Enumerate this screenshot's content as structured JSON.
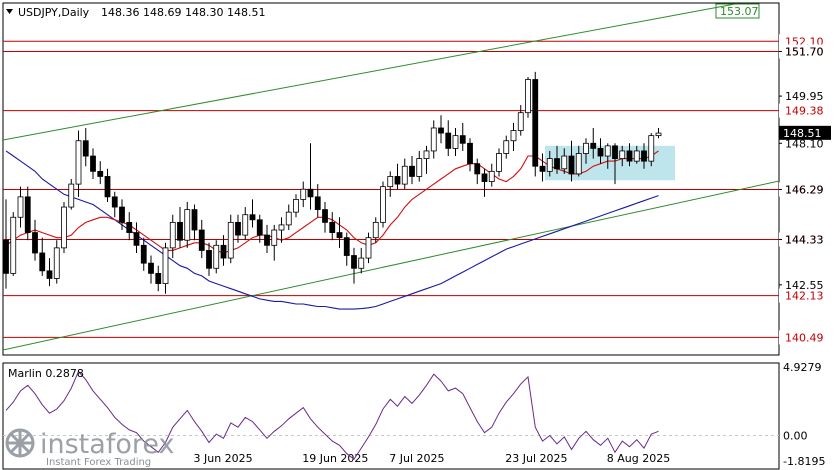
{
  "header": {
    "symbol": "USDJPY,Daily",
    "ohlc": "148.36 148.69 148.30 148.51"
  },
  "indicator": {
    "label": "Marlin 0.2878",
    "axis_ticks": [
      "4.9279",
      "0.00",
      "-1.8195"
    ]
  },
  "watermark": {
    "brand": "instaforex",
    "tagline": "Instant Forex Trading"
  },
  "colors": {
    "bull_candle": "#ffffff",
    "bear_candle": "#000000",
    "level_line": "#c00000",
    "channel_line": "#2e8b2e",
    "slow_ma": "#1a1aa0",
    "fast_ma": "#d01010",
    "oscillator": "#6a2a8a",
    "range_box": "#a8dbe6",
    "current_price_bg": "#000000",
    "current_price_text": "#ffffff"
  },
  "chart_data": {
    "type": "candlestick",
    "symbol": "USDJPY",
    "timeframe": "Daily",
    "ylim": [
      139.8,
      153.6
    ],
    "y_ticks": [
      "151.70",
      "149.95",
      "148.10",
      "146.29",
      "144.33",
      "142.55"
    ],
    "x_ticks": [
      "3 Jun 2025",
      "19 Jun 2025",
      "7 Jul 2025",
      "23 Jul 2025",
      "8 Aug 2025"
    ],
    "levels": [
      {
        "label": "152.10",
        "value": 152.1
      },
      {
        "label": "151.70",
        "value": 151.7
      },
      {
        "label": "149.38",
        "value": 149.38
      },
      {
        "label": "146.29",
        "value": 146.29
      },
      {
        "label": "144.33",
        "value": 144.33
      },
      {
        "label": "142.13",
        "value": 142.13
      },
      {
        "label": "140.49",
        "value": 140.49
      }
    ],
    "channel_top_label": "153.07",
    "current_price": "148.51",
    "candles": [
      [
        144.3,
        145.9,
        142.4,
        143.0
      ],
      [
        143.0,
        145.4,
        142.9,
        145.2
      ],
      [
        145.2,
        146.4,
        144.8,
        146.0
      ],
      [
        146.0,
        146.4,
        144.3,
        144.6
      ],
      [
        144.6,
        145.1,
        143.5,
        143.8
      ],
      [
        143.8,
        144.4,
        142.9,
        143.1
      ],
      [
        143.1,
        143.6,
        142.5,
        142.8
      ],
      [
        142.8,
        144.3,
        142.6,
        144.0
      ],
      [
        144.0,
        145.8,
        143.8,
        145.6
      ],
      [
        145.6,
        146.7,
        145.5,
        146.5
      ],
      [
        146.5,
        148.6,
        146.0,
        148.2
      ],
      [
        148.2,
        148.7,
        147.2,
        147.6
      ],
      [
        147.6,
        147.9,
        146.7,
        147.0
      ],
      [
        147.0,
        147.4,
        146.5,
        146.8
      ],
      [
        146.8,
        147.1,
        145.8,
        146.0
      ],
      [
        146.0,
        146.2,
        145.2,
        145.6
      ],
      [
        145.6,
        145.9,
        144.7,
        145.0
      ],
      [
        145.0,
        145.4,
        144.3,
        144.6
      ],
      [
        144.6,
        145.0,
        143.8,
        144.1
      ],
      [
        144.1,
        144.4,
        143.1,
        143.4
      ],
      [
        143.4,
        143.7,
        142.6,
        143.0
      ],
      [
        143.0,
        143.3,
        142.3,
        142.6
      ],
      [
        142.6,
        144.2,
        142.2,
        144.0
      ],
      [
        144.0,
        145.3,
        143.6,
        145.0
      ],
      [
        145.0,
        145.6,
        144.0,
        144.3
      ],
      [
        144.3,
        145.8,
        144.0,
        145.5
      ],
      [
        145.5,
        145.7,
        144.3,
        144.7
      ],
      [
        144.7,
        145.1,
        143.6,
        143.9
      ],
      [
        143.9,
        144.2,
        142.9,
        143.2
      ],
      [
        143.2,
        144.3,
        143.0,
        144.1
      ],
      [
        144.1,
        144.5,
        143.3,
        143.6
      ],
      [
        143.6,
        145.3,
        143.4,
        145.0
      ],
      [
        145.0,
        145.3,
        144.2,
        144.5
      ],
      [
        144.5,
        145.6,
        144.3,
        145.3
      ],
      [
        145.3,
        145.9,
        144.8,
        145.1
      ],
      [
        145.1,
        145.3,
        144.2,
        144.5
      ],
      [
        144.5,
        144.9,
        143.8,
        144.1
      ],
      [
        144.1,
        144.9,
        143.5,
        144.7
      ],
      [
        144.7,
        145.2,
        144.2,
        144.9
      ],
      [
        144.9,
        145.7,
        144.7,
        145.4
      ],
      [
        145.4,
        146.1,
        145.2,
        145.9
      ],
      [
        145.9,
        146.6,
        145.6,
        146.3
      ],
      [
        146.3,
        148.1,
        145.5,
        146.0
      ],
      [
        146.0,
        146.5,
        145.2,
        145.5
      ],
      [
        145.5,
        145.8,
        144.6,
        145.0
      ],
      [
        145.0,
        145.4,
        144.3,
        144.6
      ],
      [
        144.6,
        145.2,
        144.0,
        144.4
      ],
      [
        144.4,
        144.6,
        143.3,
        143.7
      ],
      [
        143.7,
        144.0,
        142.6,
        143.2
      ],
      [
        143.2,
        144.0,
        143.0,
        143.6
      ],
      [
        143.6,
        144.6,
        143.4,
        144.4
      ],
      [
        144.4,
        145.2,
        144.2,
        145.0
      ],
      [
        145.0,
        146.6,
        144.8,
        146.4
      ],
      [
        146.4,
        147.0,
        146.0,
        146.8
      ],
      [
        146.8,
        147.3,
        146.3,
        146.5
      ],
      [
        146.5,
        147.5,
        146.3,
        147.2
      ],
      [
        147.2,
        147.6,
        146.5,
        146.8
      ],
      [
        146.8,
        147.8,
        146.6,
        147.5
      ],
      [
        147.5,
        148.0,
        146.9,
        147.8
      ],
      [
        147.8,
        149.0,
        147.5,
        148.7
      ],
      [
        148.7,
        149.2,
        148.1,
        148.5
      ],
      [
        148.5,
        149.0,
        147.6,
        147.9
      ],
      [
        147.9,
        148.7,
        147.6,
        148.4
      ],
      [
        148.4,
        148.9,
        147.8,
        148.1
      ],
      [
        148.1,
        148.3,
        147.0,
        147.3
      ],
      [
        147.3,
        147.5,
        146.5,
        146.9
      ],
      [
        146.9,
        147.1,
        146.0,
        146.6
      ],
      [
        146.6,
        147.3,
        146.4,
        147.0
      ],
      [
        147.0,
        147.9,
        146.8,
        147.7
      ],
      [
        147.7,
        148.4,
        147.5,
        148.2
      ],
      [
        148.2,
        148.9,
        147.8,
        148.6
      ],
      [
        148.6,
        149.6,
        148.4,
        149.3
      ],
      [
        149.3,
        150.7,
        149.1,
        150.6
      ],
      [
        150.6,
        150.9,
        146.8,
        147.2
      ],
      [
        147.2,
        147.7,
        146.6,
        147.0
      ],
      [
        147.0,
        147.8,
        146.8,
        147.5
      ],
      [
        147.5,
        148.0,
        146.9,
        147.1
      ],
      [
        147.1,
        147.9,
        146.9,
        147.6
      ],
      [
        147.6,
        148.2,
        146.6,
        146.9
      ],
      [
        146.9,
        148.0,
        146.8,
        147.7
      ],
      [
        147.7,
        148.3,
        147.3,
        148.1
      ],
      [
        148.1,
        148.7,
        147.5,
        147.9
      ],
      [
        147.9,
        148.3,
        147.3,
        147.6
      ],
      [
        147.6,
        148.1,
        147.1,
        148.0
      ],
      [
        148.0,
        148.1,
        146.5,
        147.5
      ],
      [
        147.5,
        148.0,
        147.2,
        147.8
      ],
      [
        147.8,
        148.1,
        147.2,
        147.4
      ],
      [
        147.4,
        148.0,
        147.3,
        147.8
      ],
      [
        147.8,
        148.1,
        147.1,
        147.4
      ],
      [
        147.4,
        148.5,
        147.2,
        148.4
      ],
      [
        148.4,
        148.7,
        148.3,
        148.5
      ]
    ],
    "series": [
      {
        "values": [
          147.8,
          147.6,
          147.4,
          147.2,
          147.0,
          146.7,
          146.5,
          146.3,
          146.1,
          146.0,
          145.9,
          145.8,
          145.7,
          145.5,
          145.3,
          145.1,
          144.9,
          144.7,
          144.5,
          144.3,
          144.1,
          143.9,
          143.7,
          143.5,
          143.3,
          143.2,
          143.0,
          142.9,
          142.7,
          142.6,
          142.5,
          142.4,
          142.3,
          142.2,
          142.1,
          142.0,
          141.95,
          141.9,
          141.9,
          141.85,
          141.8,
          141.8,
          141.75,
          141.7,
          141.7,
          141.65,
          141.6,
          141.6,
          141.6,
          141.62,
          141.65,
          141.7,
          141.8,
          141.9,
          142.0,
          142.1,
          142.2,
          142.3,
          142.4,
          142.5,
          142.6,
          142.75,
          142.9,
          143.05,
          143.2,
          143.35,
          143.5,
          143.65,
          143.8,
          143.95,
          144.05,
          144.15,
          144.25,
          144.35,
          144.45,
          144.55,
          144.65,
          144.75,
          144.85,
          144.95,
          145.05,
          145.15,
          145.25,
          145.35,
          145.45,
          145.55,
          145.65,
          145.75,
          145.85,
          145.95,
          146.05
        ]
      },
      {
        "values": [
          144.1,
          144.3,
          144.5,
          144.6,
          144.7,
          144.6,
          144.5,
          144.4,
          144.4,
          144.5,
          144.8,
          145.0,
          145.1,
          145.2,
          145.2,
          145.1,
          145.0,
          144.9,
          144.7,
          144.5,
          144.3,
          144.1,
          143.9,
          143.9,
          144.0,
          144.1,
          144.2,
          144.2,
          144.1,
          143.9,
          143.8,
          143.9,
          144.0,
          144.2,
          144.4,
          144.5,
          144.5,
          144.4,
          144.3,
          144.4,
          144.6,
          144.8,
          145.0,
          145.2,
          145.2,
          145.1,
          144.9,
          144.7,
          144.4,
          144.2,
          144.1,
          144.2,
          144.5,
          144.9,
          145.2,
          145.6,
          145.9,
          146.1,
          146.3,
          146.5,
          146.7,
          146.9,
          147.1,
          147.2,
          147.3,
          147.3,
          147.1,
          146.9,
          146.7,
          146.6,
          146.8,
          147.1,
          147.6,
          147.6,
          147.4,
          147.2,
          147.1,
          147.0,
          146.9,
          146.9,
          147.0,
          147.2,
          147.3,
          147.4,
          147.4,
          147.5,
          147.5,
          147.5,
          147.5,
          147.6,
          147.8
        ]
      }
    ],
    "oscillator": [
      1.8,
      2.4,
      3.2,
      3.6,
      3.0,
      2.2,
      1.6,
      1.9,
      2.5,
      3.4,
      4.6,
      4.0,
      3.2,
      2.6,
      2.0,
      1.3,
      0.8,
      0.4,
      0.2,
      -0.4,
      -0.8,
      -1.2,
      -0.5,
      0.6,
      1.2,
      1.8,
      1.0,
      0.3,
      -0.5,
      0.1,
      -0.2,
      0.9,
      0.6,
      1.3,
      1.0,
      0.4,
      -0.2,
      0.3,
      0.7,
      1.2,
      1.6,
      2.0,
      1.2,
      0.6,
      0.1,
      -0.4,
      -0.7,
      -1.3,
      -1.7,
      -0.9,
      -0.1,
      0.8,
      1.9,
      2.6,
      2.1,
      2.8,
      2.3,
      2.9,
      3.6,
      4.4,
      3.9,
      3.2,
      3.4,
      3.0,
      2.0,
      1.0,
      0.2,
      0.6,
      1.6,
      2.4,
      3.0,
      3.7,
      4.2,
      0.6,
      -0.4,
      0.0,
      -0.6,
      -0.1,
      -1.0,
      -0.2,
      0.3,
      -0.3,
      -0.7,
      -0.2,
      -1.2,
      -0.4,
      -0.8,
      -0.3,
      -0.9,
      0.1,
      0.3
    ]
  }
}
